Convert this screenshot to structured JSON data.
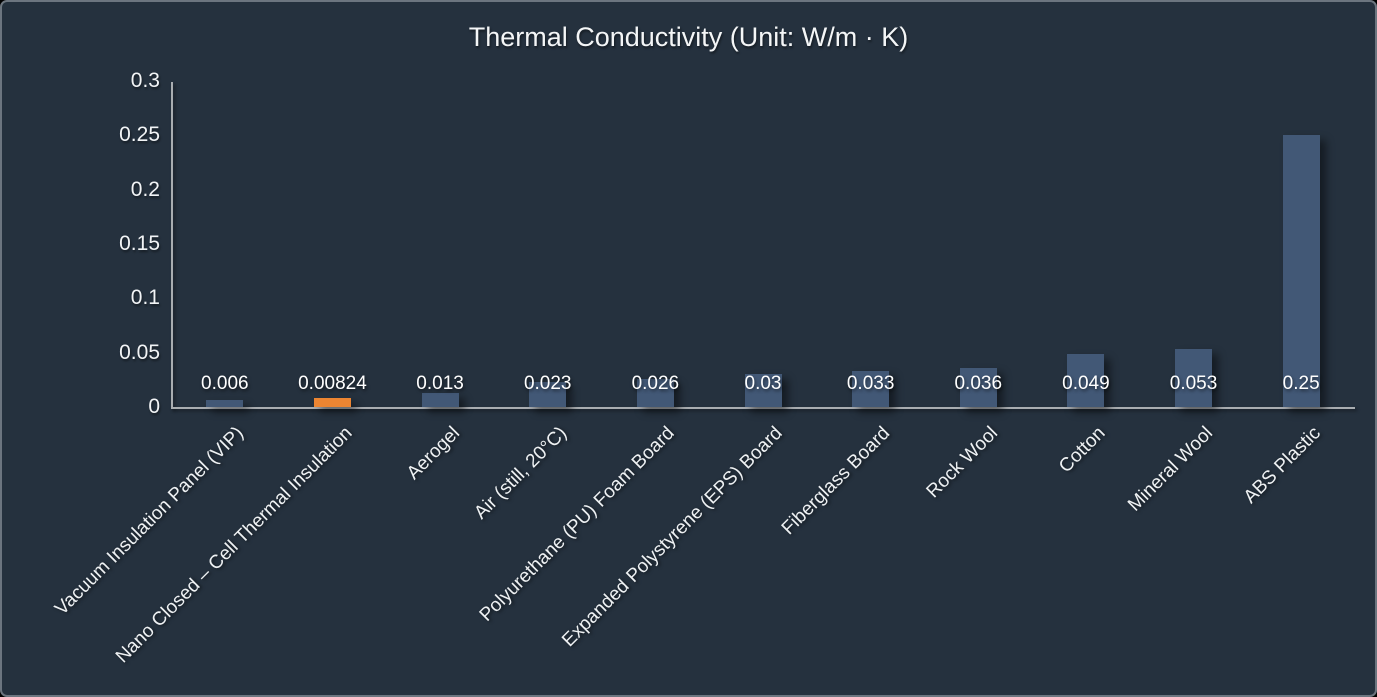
{
  "window": {
    "background_color": "#25313e",
    "border_color": "#6c757f"
  },
  "chart_data": {
    "type": "bar",
    "title": "Thermal Conductivity (Unit: W/m · K)",
    "categories": [
      "Vacuum Insulation Panel (VIP)",
      "Nano Closed – Cell Thermal Insulation",
      "Aerogel",
      "Air (still, 20°C)",
      "Polyurethane (PU) Foam Board",
      "Expanded Polystyrene (EPS) Board",
      "Fiberglass Board",
      "Rock Wool",
      "Cotton",
      "Mineral Wool",
      "ABS Plastic"
    ],
    "values": [
      0.006,
      0.00824,
      0.013,
      0.023,
      0.026,
      0.03,
      0.033,
      0.036,
      0.049,
      0.053,
      0.25
    ],
    "value_labels": [
      "0.006",
      "0.00824",
      "0.013",
      "0.023",
      "0.026",
      "0.03",
      "0.033",
      "0.036",
      "0.049",
      "0.053",
      "0.25"
    ],
    "highlight_index": 1,
    "bar_color_default": "#425876",
    "bar_color_highlight": "#ec8532",
    "axis_color": "#a9adb1",
    "text_color": "#f2f4f6",
    "xlabel": "",
    "ylabel": "",
    "ylim": [
      0,
      0.3
    ],
    "y_tick_values": [
      0,
      0.05,
      0.1,
      0.15,
      0.2,
      0.25,
      0.3
    ],
    "y_tick_labels": [
      "0",
      "0.05",
      "0.1",
      "0.15",
      "0.2",
      "0.25",
      "0.3"
    ],
    "grid": false,
    "legend_position": "none",
    "x_label_rotation_deg": 45
  }
}
